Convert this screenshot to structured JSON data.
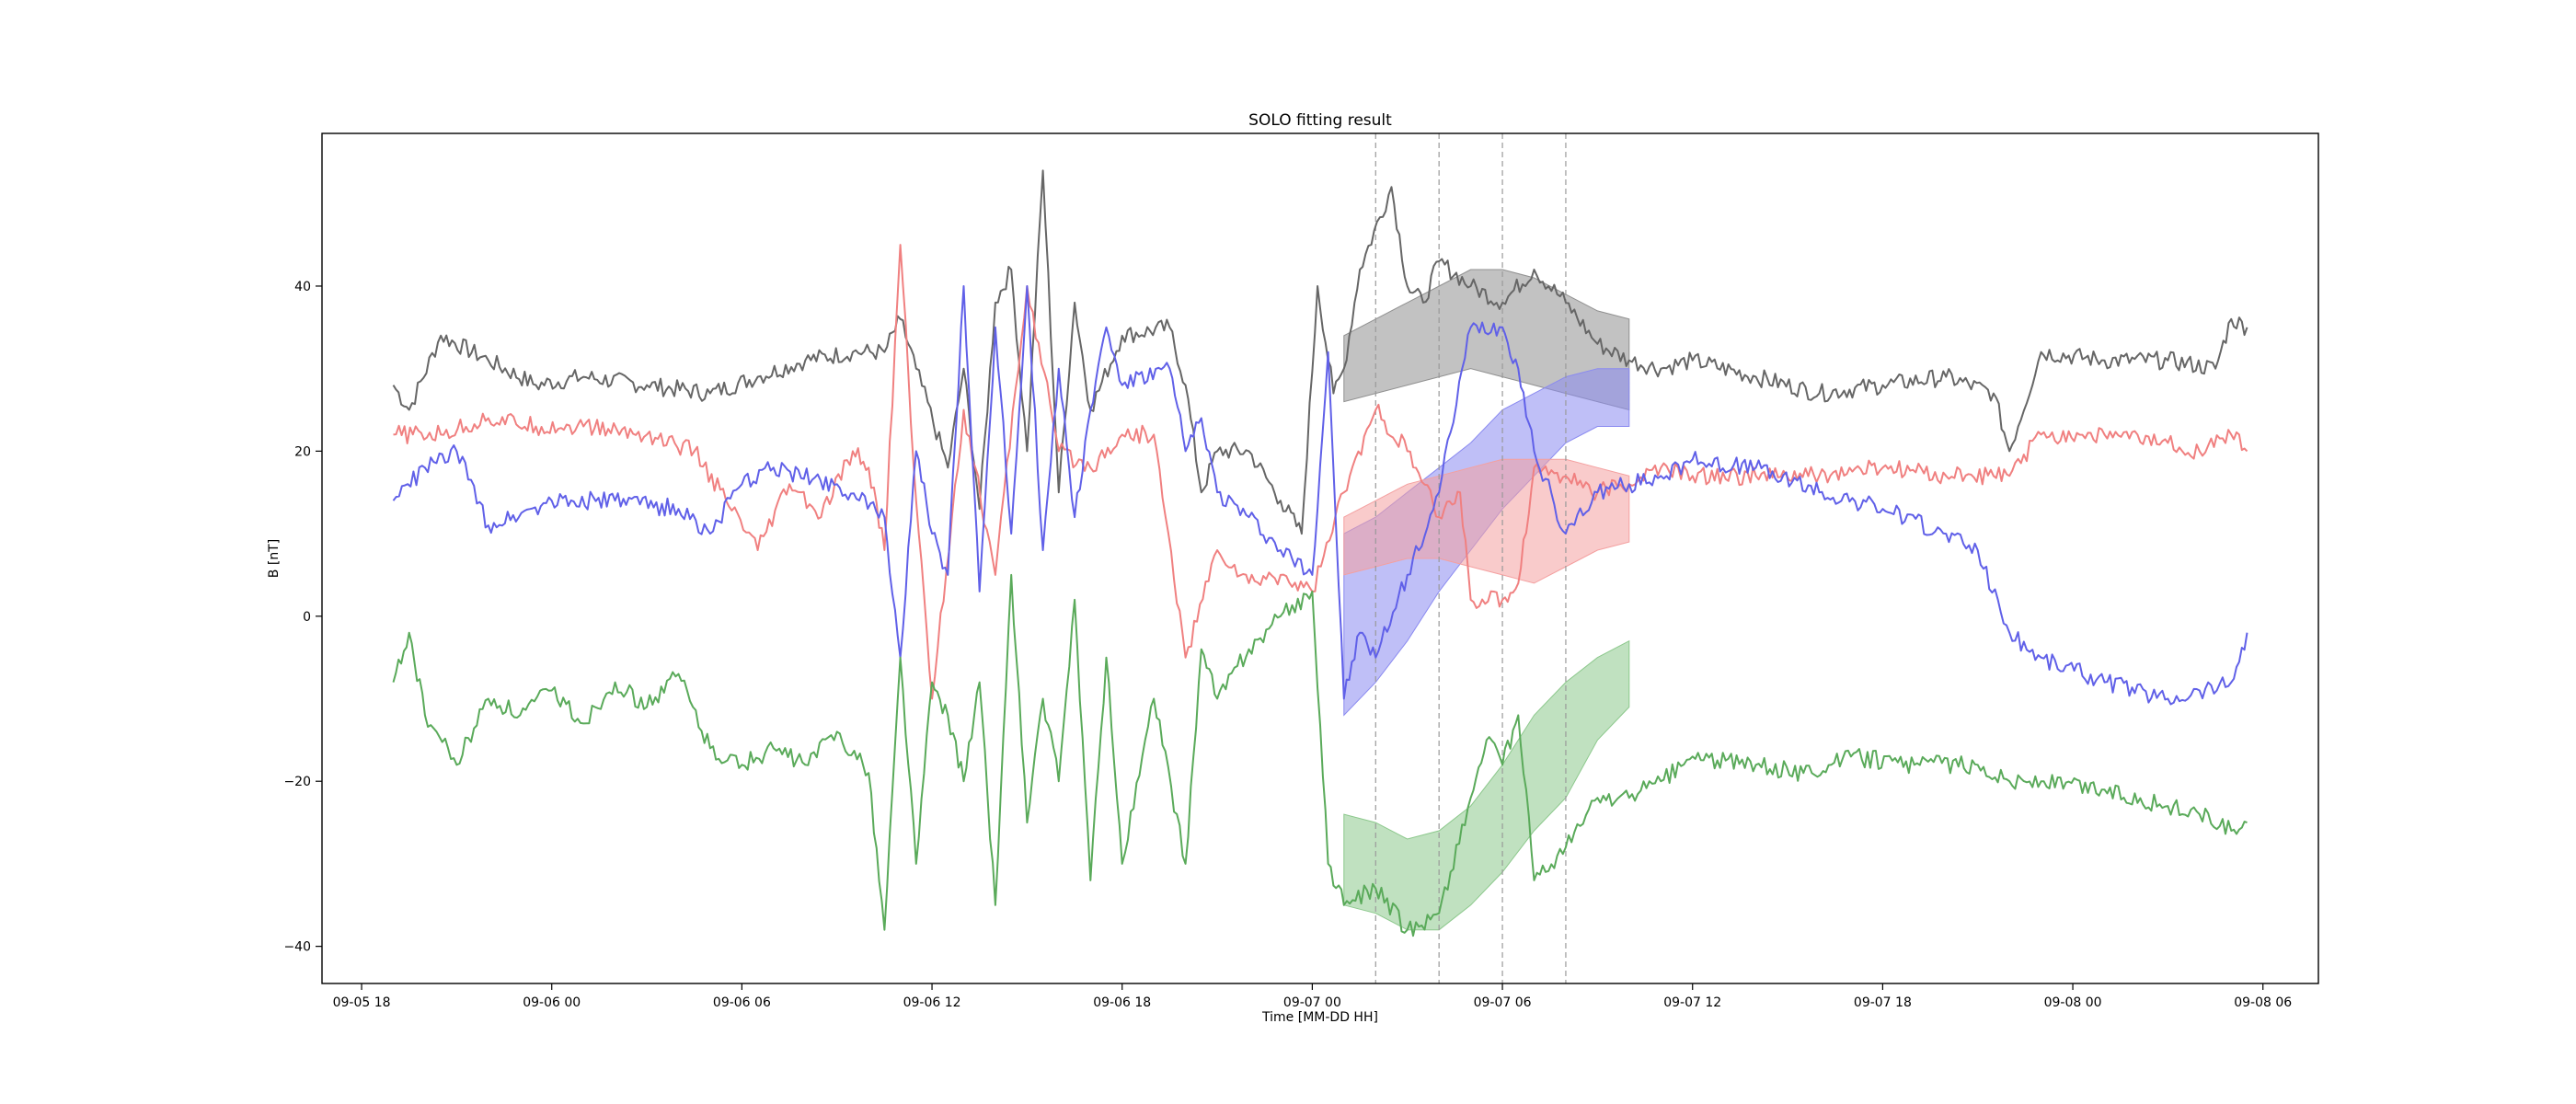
{
  "chart_data": {
    "type": "line",
    "title": "SOLO fitting result",
    "xlabel": "Time [MM-DD HH]",
    "ylabel": "B [nT]",
    "xlim": [
      "2021-09-05 16:45",
      "2021-09-08 07:45"
    ],
    "ylim": [
      -44.5,
      58.5
    ],
    "x_ticks": [
      {
        "t": "2021-09-05 18:00",
        "label": "09-05 18"
      },
      {
        "t": "2021-09-06 00:00",
        "label": "09-06 00"
      },
      {
        "t": "2021-09-06 06:00",
        "label": "09-06 06"
      },
      {
        "t": "2021-09-06 12:00",
        "label": "09-06 12"
      },
      {
        "t": "2021-09-06 18:00",
        "label": "09-06 18"
      },
      {
        "t": "2021-09-07 00:00",
        "label": "09-07 00"
      },
      {
        "t": "2021-09-07 06:00",
        "label": "09-07 06"
      },
      {
        "t": "2021-09-07 12:00",
        "label": "09-07 12"
      },
      {
        "t": "2021-09-07 18:00",
        "label": "09-07 18"
      },
      {
        "t": "2021-09-08 00:00",
        "label": "09-08 00"
      },
      {
        "t": "2021-09-08 06:00",
        "label": "09-08 06"
      }
    ],
    "y_ticks": [
      {
        "v": 40,
        "label": "40"
      },
      {
        "v": 20,
        "label": "20"
      },
      {
        "v": 0,
        "label": "0"
      },
      {
        "v": -20,
        "label": "−20"
      },
      {
        "v": -40,
        "label": "−40"
      }
    ],
    "grid": false,
    "legend": "none",
    "vertical_lines": [
      "2021-09-07 02:00",
      "2021-09-07 04:00",
      "2021-09-07 06:00",
      "2021-09-07 08:00"
    ],
    "series": [
      {
        "color": "#666666",
        "x": [
          "2021-09-05 19:00",
          "2021-09-05 19:30",
          "2021-09-05 20:30",
          "2021-09-05 22:00",
          "2021-09-05 23:30",
          "2021-09-06 01:00",
          "2021-09-06 03:00",
          "2021-09-06 05:00",
          "2021-09-06 06:30",
          "2021-09-06 08:00",
          "2021-09-06 09:30",
          "2021-09-06 10:30",
          "2021-09-06 11:00",
          "2021-09-06 11:30",
          "2021-09-06 12:30",
          "2021-09-06 13:00",
          "2021-09-06 13:30",
          "2021-09-06 14:00",
          "2021-09-06 14:30",
          "2021-09-06 15:00",
          "2021-09-06 15:30",
          "2021-09-06 16:00",
          "2021-09-06 16:30",
          "2021-09-06 17:00",
          "2021-09-06 18:00",
          "2021-09-06 19:30",
          "2021-09-06 20:00",
          "2021-09-06 20:30",
          "2021-09-06 21:00",
          "2021-09-06 22:00",
          "2021-09-06 23:00",
          "2021-09-06 23:40",
          "2021-09-07 00:10",
          "2021-09-07 00:40",
          "2021-09-07 01:00",
          "2021-09-07 01:30",
          "2021-09-07 02:30",
          "2021-09-07 03:00",
          "2021-09-07 03:30",
          "2021-09-07 04:00",
          "2021-09-07 05:00",
          "2021-09-07 06:00",
          "2021-09-07 07:00",
          "2021-09-07 08:00",
          "2021-09-07 09:00",
          "2021-09-07 10:00",
          "2021-09-07 11:00",
          "2021-09-07 12:00",
          "2021-09-07 14:00",
          "2021-09-07 16:00",
          "2021-09-07 18:00",
          "2021-09-07 20:00",
          "2021-09-07 21:30",
          "2021-09-07 22:00",
          "2021-09-07 23:00",
          "2021-09-08 01:00",
          "2021-09-08 03:00",
          "2021-09-08 04:30",
          "2021-09-08 05:00",
          "2021-09-08 05:30"
        ],
        "y": [
          28,
          25,
          34,
          31,
          28,
          29,
          28,
          27,
          29,
          31,
          32,
          32,
          36,
          30,
          18,
          30,
          13,
          38,
          42,
          20,
          54,
          15,
          38,
          25,
          34,
          35,
          28,
          15,
          20,
          20,
          14,
          10,
          40,
          27,
          30,
          42,
          52,
          40,
          38,
          43,
          40,
          38,
          42,
          38,
          33,
          31,
          30,
          31,
          29,
          27,
          28,
          29,
          27,
          20,
          32,
          31,
          31,
          30,
          36,
          35
        ]
      },
      {
        "color": "#f08080",
        "x": [
          "2021-09-05 19:00",
          "2021-09-05 20:30",
          "2021-09-05 22:00",
          "2021-09-05 23:30",
          "2021-09-06 01:00",
          "2021-09-06 03:00",
          "2021-09-06 04:30",
          "2021-09-06 05:30",
          "2021-09-06 06:30",
          "2021-09-06 07:30",
          "2021-09-06 08:30",
          "2021-09-06 09:30",
          "2021-09-06 10:00",
          "2021-09-06 10:30",
          "2021-09-06 11:00",
          "2021-09-06 11:30",
          "2021-09-06 12:00",
          "2021-09-06 13:00",
          "2021-09-06 14:00",
          "2021-09-06 15:00",
          "2021-09-06 16:00",
          "2021-09-06 17:00",
          "2021-09-06 18:00",
          "2021-09-06 19:00",
          "2021-09-06 20:00",
          "2021-09-06 21:00",
          "2021-09-06 22:00",
          "2021-09-06 23:00",
          "2021-09-07 00:00",
          "2021-09-07 01:00",
          "2021-09-07 02:00",
          "2021-09-07 03:00",
          "2021-09-07 04:00",
          "2021-09-07 04:40",
          "2021-09-07 05:00",
          "2021-09-07 06:00",
          "2021-09-07 06:30",
          "2021-09-07 07:00",
          "2021-09-07 08:00",
          "2021-09-07 09:00",
          "2021-09-07 10:00",
          "2021-09-07 11:00",
          "2021-09-07 12:00",
          "2021-09-07 14:00",
          "2021-09-07 16:00",
          "2021-09-07 18:00",
          "2021-09-07 20:00",
          "2021-09-07 21:30",
          "2021-09-07 22:00",
          "2021-09-07 23:00",
          "2021-09-08 01:00",
          "2021-09-08 03:00",
          "2021-09-08 04:00",
          "2021-09-08 05:00",
          "2021-09-08 05:30"
        ],
        "y": [
          22,
          22,
          24,
          23,
          23,
          22,
          20,
          14,
          8,
          16,
          12,
          20,
          18,
          8,
          45,
          14,
          -10,
          25,
          5,
          40,
          20,
          18,
          22,
          22,
          -5,
          8,
          4,
          5,
          3,
          15,
          25,
          20,
          12,
          15,
          2,
          2,
          4,
          18,
          17,
          15,
          16,
          18,
          17,
          17,
          17,
          18,
          17,
          17,
          17,
          22,
          22,
          21,
          20,
          22,
          20
        ]
      },
      {
        "color": "#6060e8",
        "x": [
          "2021-09-05 19:00",
          "2021-09-05 20:00",
          "2021-09-05 21:00",
          "2021-09-05 22:00",
          "2021-09-06 00:00",
          "2021-09-06 02:00",
          "2021-09-06 04:00",
          "2021-09-06 05:00",
          "2021-09-06 06:00",
          "2021-09-06 07:00",
          "2021-09-06 09:00",
          "2021-09-06 10:30",
          "2021-09-06 11:00",
          "2021-09-06 11:30",
          "2021-09-06 12:00",
          "2021-09-06 12:30",
          "2021-09-06 13:00",
          "2021-09-06 13:30",
          "2021-09-06 14:00",
          "2021-09-06 14:30",
          "2021-09-06 15:00",
          "2021-09-06 15:30",
          "2021-09-06 16:00",
          "2021-09-06 16:30",
          "2021-09-06 17:00",
          "2021-09-06 17:30",
          "2021-09-06 18:00",
          "2021-09-06 19:30",
          "2021-09-06 20:00",
          "2021-09-06 20:30",
          "2021-09-06 21:00",
          "2021-09-06 22:00",
          "2021-09-06 23:00",
          "2021-09-07 00:00",
          "2021-09-07 00:30",
          "2021-09-07 01:00",
          "2021-09-07 01:30",
          "2021-09-07 02:00",
          "2021-09-07 03:00",
          "2021-09-07 04:00",
          "2021-09-07 05:00",
          "2021-09-07 06:00",
          "2021-09-07 06:30",
          "2021-09-07 07:00",
          "2021-09-07 08:00",
          "2021-09-07 09:00",
          "2021-09-07 10:00",
          "2021-09-07 11:00",
          "2021-09-07 12:00",
          "2021-09-07 14:00",
          "2021-09-07 16:00",
          "2021-09-07 18:00",
          "2021-09-07 20:00",
          "2021-09-07 21:00",
          "2021-09-07 22:00",
          "2021-09-07 23:00",
          "2021-09-08 01:00",
          "2021-09-08 03:00",
          "2021-09-08 04:00",
          "2021-09-08 05:00",
          "2021-09-08 05:30"
        ],
        "y": [
          14,
          18,
          20,
          11,
          14,
          14,
          13,
          10,
          16,
          18,
          16,
          12,
          -5,
          20,
          10,
          5,
          40,
          3,
          35,
          10,
          40,
          8,
          30,
          12,
          25,
          35,
          28,
          30,
          20,
          24,
          15,
          12,
          8,
          5,
          32,
          -10,
          -2,
          -5,
          5,
          15,
          35,
          35,
          30,
          20,
          10,
          15,
          16,
          17,
          19,
          18,
          15,
          13,
          10,
          8,
          -2,
          -5,
          -8,
          -10,
          -9,
          -8,
          -2
        ]
      },
      {
        "color": "#5aaa5a",
        "x": [
          "2021-09-05 19:00",
          "2021-09-05 19:30",
          "2021-09-05 20:00",
          "2021-09-05 21:00",
          "2021-09-05 22:00",
          "2021-09-05 23:00",
          "2021-09-06 00:00",
          "2021-09-06 01:00",
          "2021-09-06 02:00",
          "2021-09-06 03:00",
          "2021-09-06 04:00",
          "2021-09-06 05:00",
          "2021-09-06 06:00",
          "2021-09-06 07:00",
          "2021-09-06 08:00",
          "2021-09-06 09:00",
          "2021-09-06 10:00",
          "2021-09-06 10:30",
          "2021-09-06 11:00",
          "2021-09-06 11:30",
          "2021-09-06 12:00",
          "2021-09-06 12:30",
          "2021-09-06 13:00",
          "2021-09-06 13:30",
          "2021-09-06 14:00",
          "2021-09-06 14:30",
          "2021-09-06 15:00",
          "2021-09-06 15:30",
          "2021-09-06 16:00",
          "2021-09-06 16:30",
          "2021-09-06 17:00",
          "2021-09-06 17:30",
          "2021-09-06 18:00",
          "2021-09-06 19:00",
          "2021-09-06 20:00",
          "2021-09-06 20:30",
          "2021-09-06 21:00",
          "2021-09-06 22:00",
          "2021-09-06 23:00",
          "2021-09-07 00:00",
          "2021-09-07 00:30",
          "2021-09-07 01:00",
          "2021-09-07 02:00",
          "2021-09-07 03:00",
          "2021-09-07 04:00",
          "2021-09-07 05:00",
          "2021-09-07 05:30",
          "2021-09-07 06:00",
          "2021-09-07 06:30",
          "2021-09-07 07:00",
          "2021-09-07 08:00",
          "2021-09-07 09:00",
          "2021-09-07 10:00",
          "2021-09-07 11:00",
          "2021-09-07 12:00",
          "2021-09-07 14:00",
          "2021-09-07 15:30",
          "2021-09-07 17:00",
          "2021-09-07 19:00",
          "2021-09-07 21:00",
          "2021-09-07 22:00",
          "2021-09-07 23:00",
          "2021-09-08 01:00",
          "2021-09-08 03:00",
          "2021-09-08 04:00",
          "2021-09-08 05:00",
          "2021-09-08 05:30"
        ],
        "y": [
          -8,
          -2,
          -12,
          -18,
          -10,
          -12,
          -9,
          -13,
          -8,
          -11,
          -7,
          -16,
          -18,
          -16,
          -18,
          -14,
          -19,
          -38,
          -5,
          -30,
          -8,
          -12,
          -20,
          -8,
          -35,
          5,
          -25,
          -10,
          -20,
          2,
          -32,
          -5,
          -30,
          -10,
          -30,
          -4,
          -10,
          -4,
          0,
          3,
          -30,
          -35,
          -33,
          -38,
          -36,
          -22,
          -15,
          -18,
          -12,
          -32,
          -28,
          -22,
          -22,
          -20,
          -17,
          -18,
          -19,
          -17,
          -18,
          -18,
          -20,
          -20,
          -21,
          -23,
          -24,
          -26,
          -25
        ]
      }
    ],
    "bands": [
      {
        "color": "#909090",
        "x": [
          "2021-09-07 01:00",
          "2021-09-07 02:00",
          "2021-09-07 03:00",
          "2021-09-07 04:00",
          "2021-09-07 05:00",
          "2021-09-07 06:00",
          "2021-09-07 07:00",
          "2021-09-07 08:00",
          "2021-09-07 09:00",
          "2021-09-07 10:00"
        ],
        "upper": [
          34,
          36,
          38,
          40,
          42,
          42,
          41,
          39,
          37,
          36
        ],
        "lower": [
          26,
          27,
          28,
          29,
          30,
          29,
          28,
          27,
          26,
          25
        ]
      },
      {
        "color": "#8a8af0",
        "x": [
          "2021-09-07 01:00",
          "2021-09-07 02:00",
          "2021-09-07 03:00",
          "2021-09-07 04:00",
          "2021-09-07 05:00",
          "2021-09-07 06:00",
          "2021-09-07 07:00",
          "2021-09-07 08:00",
          "2021-09-07 09:00",
          "2021-09-07 10:00"
        ],
        "upper": [
          10,
          12,
          15,
          18,
          21,
          25,
          27,
          29,
          30,
          30
        ],
        "lower": [
          -12,
          -8,
          -3,
          3,
          8,
          13,
          17,
          21,
          23,
          23
        ]
      },
      {
        "color": "#f4a0a0",
        "x": [
          "2021-09-07 01:00",
          "2021-09-07 02:00",
          "2021-09-07 03:00",
          "2021-09-07 04:00",
          "2021-09-07 05:00",
          "2021-09-07 06:00",
          "2021-09-07 07:00",
          "2021-09-07 08:00",
          "2021-09-07 09:00",
          "2021-09-07 10:00"
        ],
        "upper": [
          12,
          14,
          16,
          17,
          18,
          19,
          19,
          19,
          18,
          17
        ],
        "lower": [
          5,
          6,
          7,
          7,
          6,
          5,
          4,
          6,
          8,
          9
        ]
      },
      {
        "color": "#8cc88c",
        "x": [
          "2021-09-07 01:00",
          "2021-09-07 02:00",
          "2021-09-07 03:00",
          "2021-09-07 04:00",
          "2021-09-07 05:00",
          "2021-09-07 06:00",
          "2021-09-07 07:00",
          "2021-09-07 08:00",
          "2021-09-07 09:00",
          "2021-09-07 10:00"
        ],
        "upper": [
          -24,
          -25,
          -27,
          -26,
          -23,
          -18,
          -12,
          -8,
          -5,
          -3
        ],
        "lower": [
          -35,
          -36,
          -38,
          -38,
          -35,
          -31,
          -26,
          -22,
          -15,
          -11
        ]
      }
    ]
  }
}
